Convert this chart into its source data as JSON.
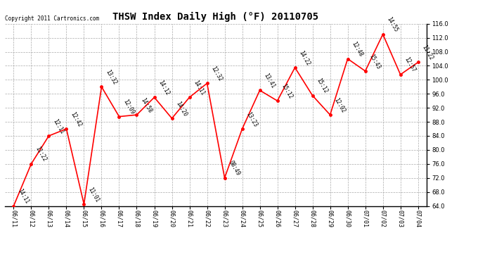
{
  "title": "THSW Index Daily High (°F) 20110705",
  "copyright": "Copyright 2011 Cartronics.com",
  "x_labels": [
    "06/11",
    "06/12",
    "06/13",
    "06/14",
    "06/15",
    "06/16",
    "06/17",
    "06/18",
    "06/19",
    "06/20",
    "06/21",
    "06/22",
    "06/23",
    "06/24",
    "06/25",
    "06/26",
    "06/27",
    "06/28",
    "06/29",
    "06/30",
    "07/01",
    "07/02",
    "07/03",
    "07/04"
  ],
  "y_values": [
    64.0,
    76.0,
    84.0,
    86.0,
    64.5,
    98.0,
    89.5,
    90.0,
    95.0,
    89.0,
    95.0,
    99.0,
    72.0,
    86.0,
    97.0,
    94.0,
    103.5,
    95.5,
    90.0,
    106.0,
    102.5,
    113.0,
    101.5,
    105.0
  ],
  "time_labels": [
    "14:11",
    "11:22",
    "12:11",
    "12:42",
    "11:01",
    "13:32",
    "12:09",
    "14:58",
    "14:12",
    "14:20",
    "14:11",
    "12:32",
    "08:49",
    "13:23",
    "13:41",
    "15:12",
    "14:22",
    "15:12",
    "12:02",
    "12:48",
    "15:43",
    "14:55",
    "12:57",
    "11:22"
  ],
  "ylim_min": 64.0,
  "ylim_max": 116.0,
  "ytick_step": 4.0,
  "line_color": "#ff0000",
  "marker_color": "#ff0000",
  "bg_color": "#ffffff",
  "grid_color": "#aaaaaa",
  "title_fontsize": 10,
  "label_fontsize": 6,
  "annotation_fontsize": 5.5,
  "copyright_fontsize": 5.5
}
